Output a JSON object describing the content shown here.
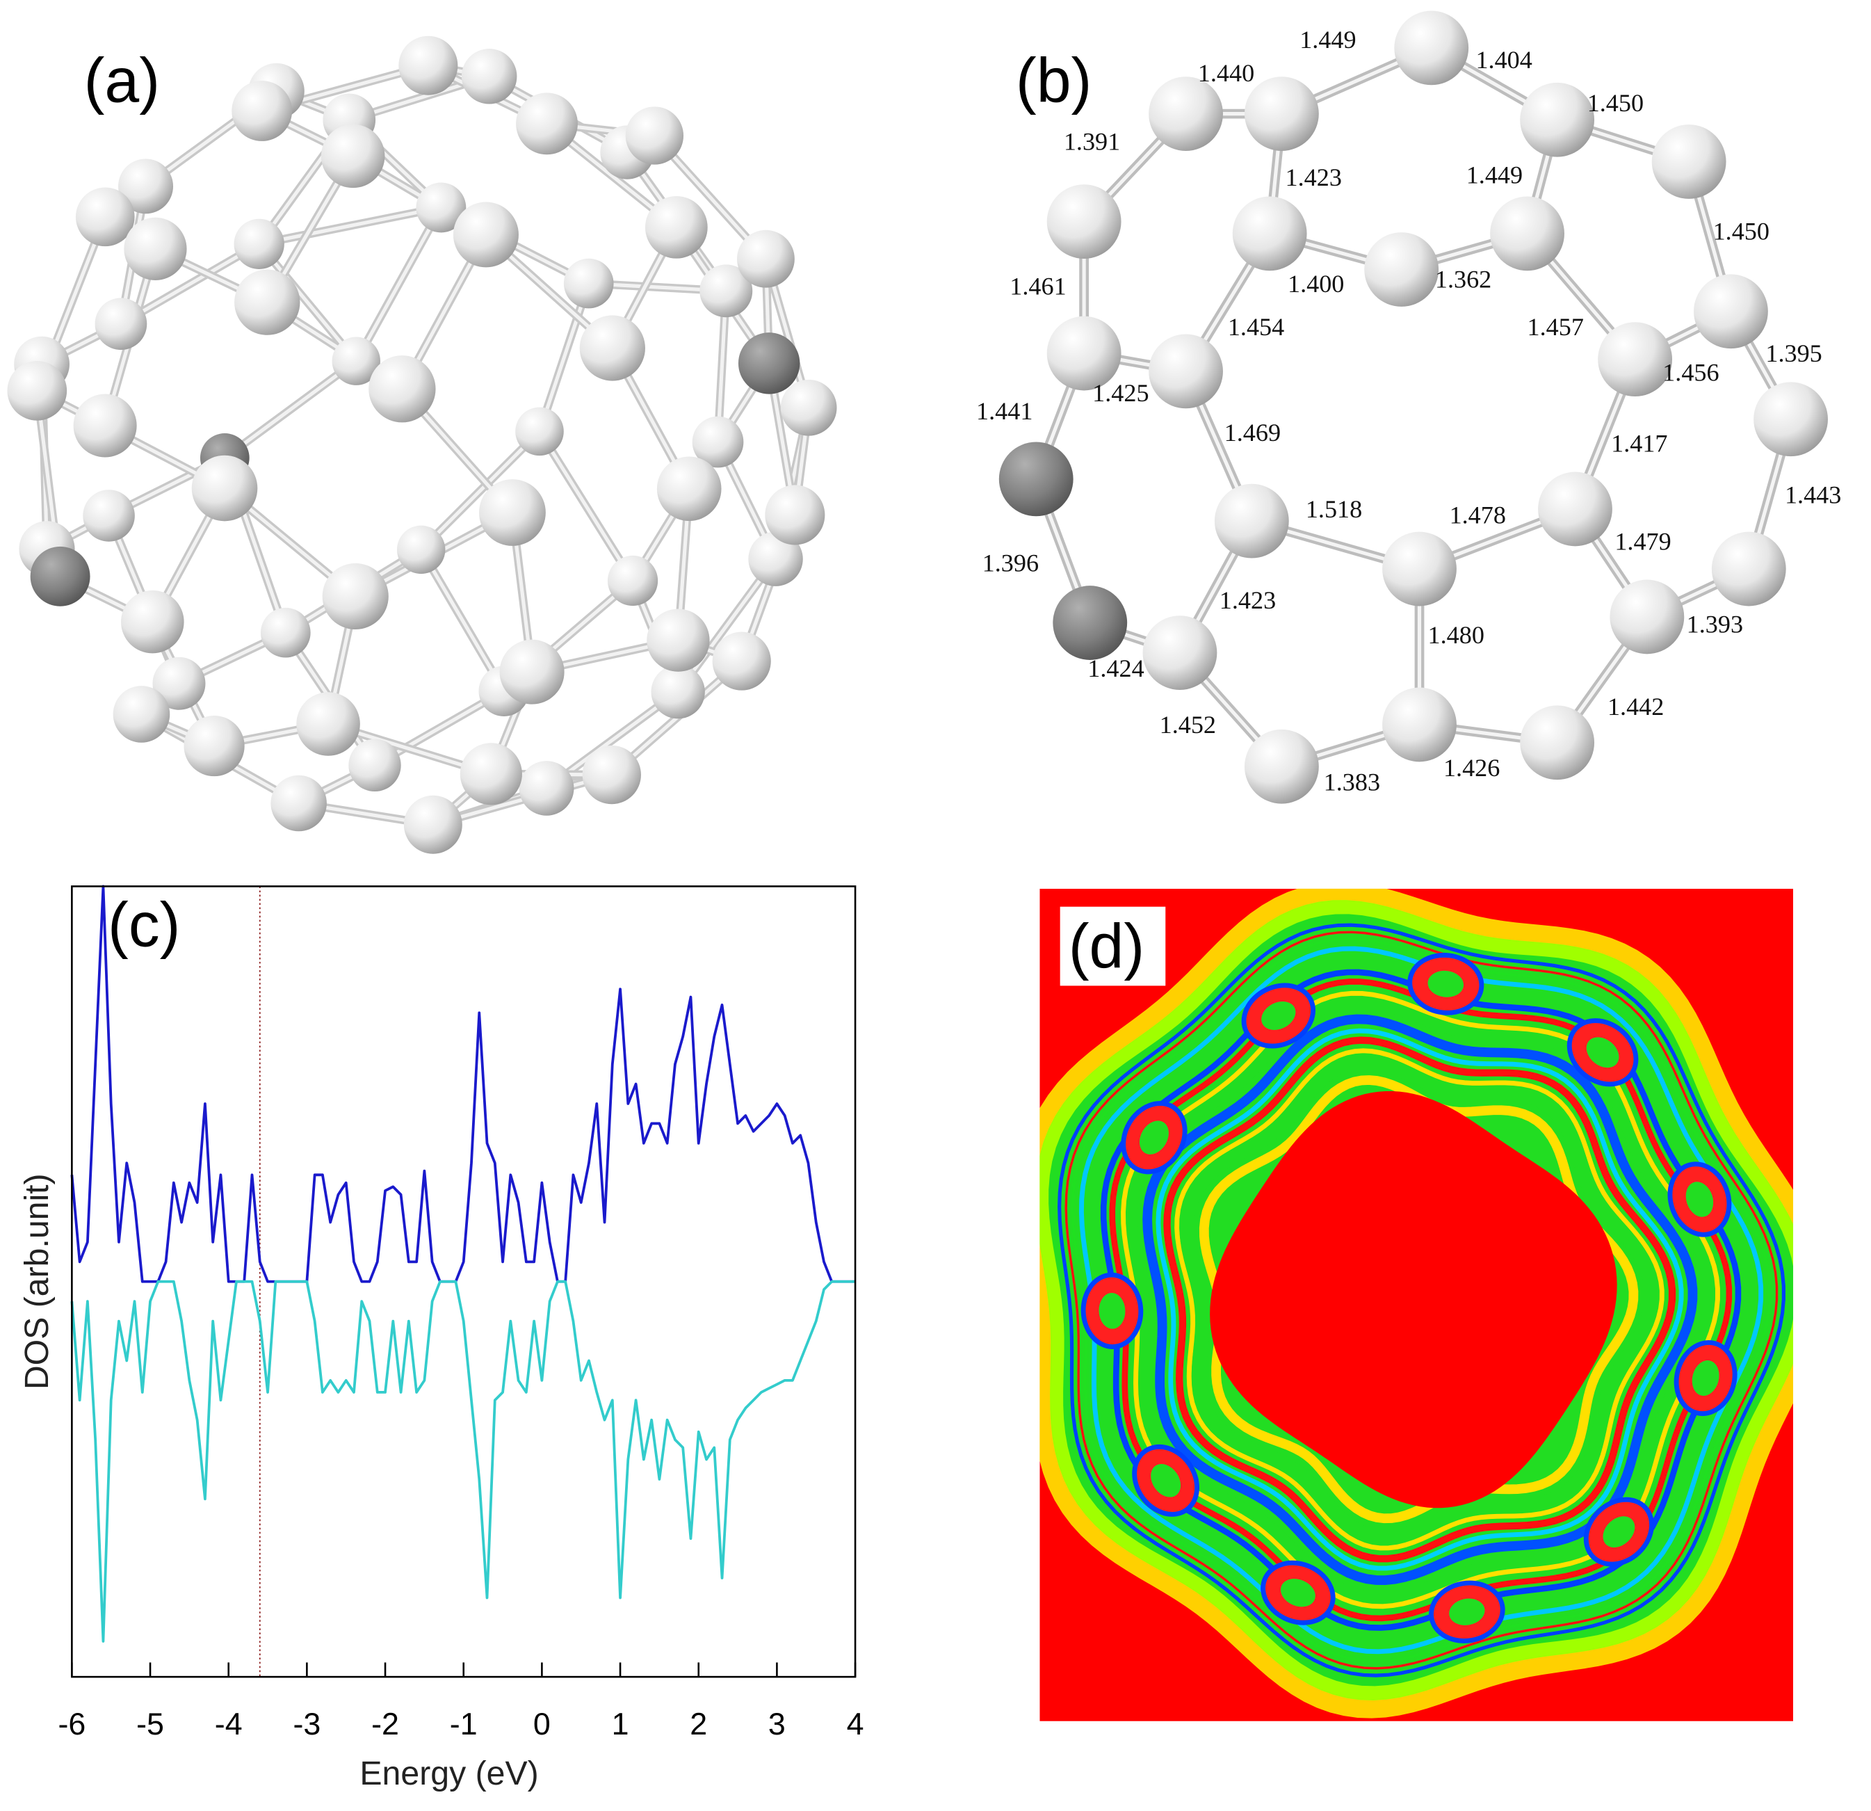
{
  "figure": {
    "panels": [
      {
        "label": "(a)"
      },
      {
        "label": "(b)",
        "bond_lengths": [
          "1.449",
          "1.404",
          "1.440",
          "1.450",
          "1.391",
          "1.423",
          "1.449",
          "1.450",
          "1.461",
          "1.400",
          "1.362",
          "1.454",
          "1.457",
          "1.456",
          "1.395",
          "1.441",
          "1.425",
          "1.469",
          "1.417",
          "1.443",
          "1.518",
          "1.478",
          "1.479",
          "1.396",
          "1.423",
          "1.480",
          "1.393",
          "1.424",
          "1.452",
          "1.442",
          "1.383",
          "1.426"
        ]
      },
      {
        "label": "(d)"
      }
    ]
  },
  "chart_data": {
    "type": "line",
    "label": "(c)",
    "x_label": "Energy (eV)",
    "y_label": "DOS (arb.unit)",
    "xlim": [
      -6,
      4
    ],
    "xticks": [
      -6,
      -5,
      -4,
      -3,
      -2,
      -1,
      0,
      1,
      2,
      3,
      4
    ],
    "ylim": [
      -1,
      1
    ],
    "fermi_level": -3.6,
    "x": [
      -6.0,
      -5.9,
      -5.8,
      -5.7,
      -5.6,
      -5.5,
      -5.4,
      -5.3,
      -5.2,
      -5.1,
      -5.0,
      -4.9,
      -4.8,
      -4.7,
      -4.6,
      -4.5,
      -4.4,
      -4.3,
      -4.2,
      -4.1,
      -4.0,
      -3.9,
      -3.8,
      -3.7,
      -3.6,
      -3.5,
      -3.4,
      -3.3,
      -3.2,
      -3.1,
      -3.0,
      -2.9,
      -2.8,
      -2.7,
      -2.6,
      -2.5,
      -2.4,
      -2.3,
      -2.2,
      -2.1,
      -2.0,
      -1.9,
      -1.8,
      -1.7,
      -1.6,
      -1.5,
      -1.4,
      -1.3,
      -1.2,
      -1.1,
      -1.0,
      -0.9,
      -0.8,
      -0.7,
      -0.6,
      -0.5,
      -0.4,
      -0.3,
      -0.2,
      -0.1,
      0.0,
      0.1,
      0.2,
      0.3,
      0.4,
      0.5,
      0.6,
      0.7,
      0.8,
      0.9,
      1.0,
      1.1,
      1.2,
      1.3,
      1.4,
      1.5,
      1.6,
      1.7,
      1.8,
      1.9,
      2.0,
      2.1,
      2.2,
      2.3,
      2.4,
      2.5,
      2.6,
      2.7,
      2.8,
      2.9,
      3.0,
      3.1,
      3.2,
      3.3,
      3.4,
      3.5,
      3.6,
      3.7,
      3.8,
      3.9,
      4.0
    ],
    "series": [
      {
        "color": "#1a1acc",
        "values": [
          0.27,
          0.05,
          0.1,
          0.55,
          1.0,
          0.45,
          0.1,
          0.3,
          0.2,
          0,
          0,
          0,
          0.05,
          0.25,
          0.15,
          0.25,
          0.2,
          0.45,
          0.1,
          0.27,
          0,
          0,
          0,
          0.27,
          0.05,
          0,
          0,
          0,
          0,
          0,
          0,
          0.27,
          0.27,
          0.15,
          0.22,
          0.25,
          0.05,
          0,
          0,
          0.05,
          0.23,
          0.24,
          0.22,
          0.05,
          0.05,
          0.28,
          0.05,
          0,
          0,
          0,
          0.05,
          0.3,
          0.68,
          0.35,
          0.3,
          0.05,
          0.27,
          0.2,
          0.05,
          0.05,
          0.25,
          0.1,
          0,
          0,
          0.27,
          0.2,
          0.3,
          0.45,
          0.15,
          0.55,
          0.74,
          0.45,
          0.5,
          0.35,
          0.4,
          0.4,
          0.35,
          0.55,
          0.62,
          0.72,
          0.35,
          0.5,
          0.62,
          0.7,
          0.55,
          0.4,
          0.42,
          0.38,
          0.4,
          0.42,
          0.45,
          0.42,
          0.35,
          0.37,
          0.3,
          0.15,
          0.05,
          0,
          0,
          0,
          0
        ]
      },
      {
        "color": "#33cccc",
        "values": [
          -0.05,
          -0.3,
          -0.05,
          -0.4,
          -0.91,
          -0.3,
          -0.1,
          -0.2,
          -0.05,
          -0.28,
          -0.05,
          0,
          0,
          0,
          -0.1,
          -0.25,
          -0.35,
          -0.55,
          -0.1,
          -0.3,
          -0.15,
          0,
          0,
          0,
          -0.1,
          -0.28,
          0,
          0,
          0,
          0,
          0,
          -0.1,
          -0.28,
          -0.25,
          -0.28,
          -0.25,
          -0.28,
          -0.05,
          -0.1,
          -0.28,
          -0.28,
          -0.1,
          -0.28,
          -0.1,
          -0.28,
          -0.25,
          -0.05,
          0,
          0,
          0,
          -0.1,
          -0.3,
          -0.5,
          -0.8,
          -0.3,
          -0.28,
          -0.1,
          -0.25,
          -0.28,
          -0.1,
          -0.25,
          -0.05,
          0,
          0,
          -0.1,
          -0.25,
          -0.2,
          -0.28,
          -0.35,
          -0.3,
          -0.8,
          -0.45,
          -0.3,
          -0.45,
          -0.35,
          -0.5,
          -0.35,
          -0.4,
          -0.42,
          -0.65,
          -0.38,
          -0.45,
          -0.42,
          -0.75,
          -0.4,
          -0.35,
          -0.32,
          -0.3,
          -0.28,
          -0.27,
          -0.26,
          -0.25,
          -0.25,
          -0.2,
          -0.15,
          -0.1,
          -0.02,
          0,
          0,
          0,
          0
        ]
      }
    ]
  }
}
